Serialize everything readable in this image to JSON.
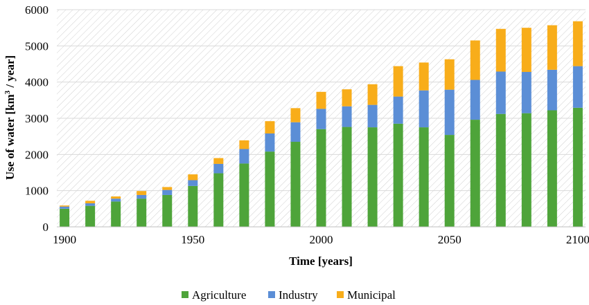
{
  "chart_data": {
    "type": "bar",
    "stacked": true,
    "x": [
      1900,
      1910,
      1920,
      1930,
      1940,
      1950,
      1960,
      1970,
      1980,
      1990,
      2000,
      2010,
      2020,
      2030,
      2040,
      2050,
      2060,
      2070,
      2080,
      2090,
      2100
    ],
    "x_ticks": [
      "1900",
      "1950",
      "2000",
      "2050",
      "2100"
    ],
    "xlim": [
      1897,
      2103
    ],
    "ylim": [
      0,
      6000
    ],
    "y_ticks": [
      "0",
      "1000",
      "2000",
      "3000",
      "4000",
      "5000",
      "6000"
    ],
    "xlabel": "Time [years]",
    "ylabel": {
      "pre": "Use of water [km",
      "sup": "3",
      "post": " / year]"
    },
    "grid": true,
    "background_pattern": "diagonal-hatch",
    "legend_position": "bottom",
    "series": [
      {
        "name": "Agriculture",
        "color": "#4EA43A",
        "values": [
          500,
          580,
          700,
          780,
          880,
          1130,
          1480,
          1750,
          2080,
          2350,
          2700,
          2760,
          2750,
          2850,
          2750,
          2540,
          2960,
          3120,
          3140,
          3220,
          3290
        ]
      },
      {
        "name": "Industry",
        "color": "#5B8ED6",
        "values": [
          60,
          70,
          80,
          100,
          140,
          160,
          260,
          400,
          500,
          540,
          560,
          570,
          620,
          750,
          1020,
          1250,
          1100,
          1170,
          1140,
          1120,
          1150
        ]
      },
      {
        "name": "Municipal",
        "color": "#F8AD1A",
        "values": [
          30,
          70,
          60,
          110,
          80,
          160,
          160,
          240,
          340,
          390,
          470,
          470,
          570,
          840,
          770,
          840,
          1090,
          1180,
          1220,
          1230,
          1240
        ]
      }
    ]
  }
}
